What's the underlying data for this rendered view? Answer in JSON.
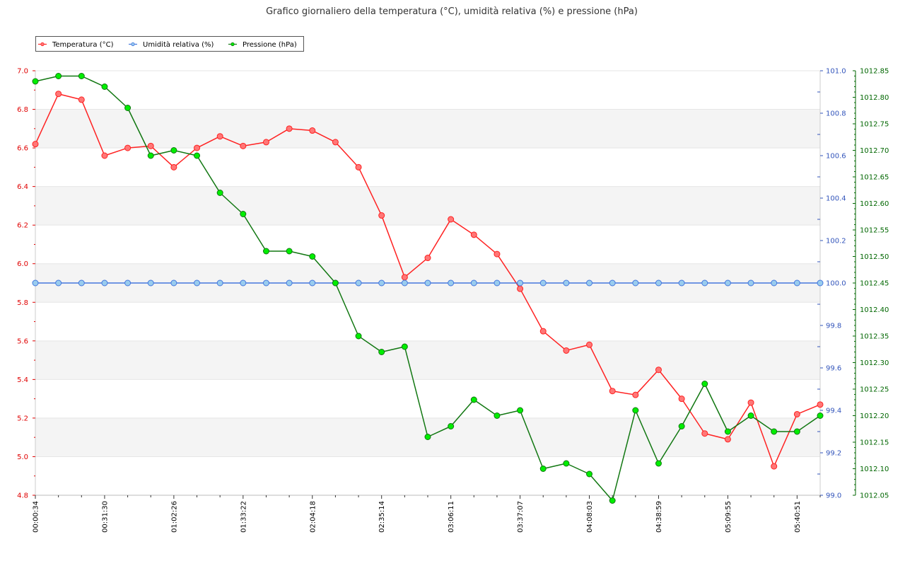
{
  "chart_data": {
    "type": "line",
    "title": "Grafico giornaliero della temperatura (°C), umidità relativa (%) e pressione (hPa)",
    "x_tick_labels": [
      "00:00:34",
      "00:31:30",
      "01:02:26",
      "01:33:22",
      "02:04:18",
      "02:35:14",
      "03:06:11",
      "03:37:07",
      "04:08:03",
      "04:38:59",
      "05:09:55",
      "05:40:51"
    ],
    "legend_position": "top-left",
    "grid": true,
    "axes": {
      "left": {
        "series": "Temperatura (°C)",
        "ylim": [
          4.8,
          7.0
        ],
        "ticks": [
          "4.8",
          "5.0",
          "5.2",
          "5.4",
          "5.6",
          "5.8",
          "6.0",
          "6.2",
          "6.4",
          "6.6",
          "6.8",
          "7.0"
        ],
        "color": "#e00000"
      },
      "right1": {
        "series": "Umidità relativa (%)",
        "ylim": [
          99.0,
          101.0
        ],
        "ticks": [
          "99.0",
          "99.2",
          "99.4",
          "99.6",
          "99.8",
          "100.0",
          "100.2",
          "100.4",
          "100.6",
          "100.8",
          "101.0"
        ],
        "color": "#3355bb"
      },
      "right2": {
        "series": "Pressione (hPa)",
        "ylim": [
          1012.05,
          1012.85
        ],
        "ticks": [
          "1012.05",
          "1012.10",
          "1012.15",
          "1012.20",
          "1012.25",
          "1012.30",
          "1012.35",
          "1012.40",
          "1012.45",
          "1012.50",
          "1012.55",
          "1012.60",
          "1012.65",
          "1012.70",
          "1012.75",
          "1012.80",
          "1012.85"
        ],
        "color": "#006600"
      }
    },
    "series": [
      {
        "name": "Temperatura (°C)",
        "axis": "left",
        "line_color": "#ff2222",
        "marker_color": "#ff7777",
        "values": [
          6.62,
          6.88,
          6.85,
          6.56,
          6.6,
          6.61,
          6.5,
          6.6,
          6.66,
          6.61,
          6.63,
          6.7,
          6.69,
          6.63,
          6.5,
          6.25,
          5.93,
          6.03,
          6.23,
          6.15,
          6.05,
          5.87,
          5.65,
          5.55,
          5.58,
          5.34,
          5.32,
          5.45,
          5.3,
          5.12,
          5.09,
          5.28,
          4.95,
          5.22,
          5.27
        ]
      },
      {
        "name": "Umidità relativa (%)",
        "axis": "right1",
        "line_color": "#4477dd",
        "marker_color": "#99ccee",
        "values": [
          100,
          100,
          100,
          100,
          100,
          100,
          100,
          100,
          100,
          100,
          100,
          100,
          100,
          100,
          100,
          100,
          100,
          100,
          100,
          100,
          100,
          100,
          100,
          100,
          100,
          100,
          100,
          100,
          100,
          100,
          100,
          100,
          100,
          100,
          100
        ]
      },
      {
        "name": "Pressione (hPa)",
        "axis": "right2",
        "line_color": "#117711",
        "marker_color": "#00ee00",
        "values": [
          1012.83,
          1012.84,
          1012.84,
          1012.82,
          1012.78,
          1012.69,
          1012.7,
          1012.69,
          1012.62,
          1012.58,
          1012.51,
          1012.51,
          1012.5,
          1012.45,
          1012.35,
          1012.32,
          1012.33,
          1012.16,
          1012.18,
          1012.23,
          1012.2,
          1012.21,
          1012.1,
          1012.11,
          1012.09,
          1012.04,
          1012.21,
          1012.11,
          1012.18,
          1012.26,
          1012.17,
          1012.2,
          1012.17,
          1012.17,
          1012.2
        ]
      }
    ]
  }
}
